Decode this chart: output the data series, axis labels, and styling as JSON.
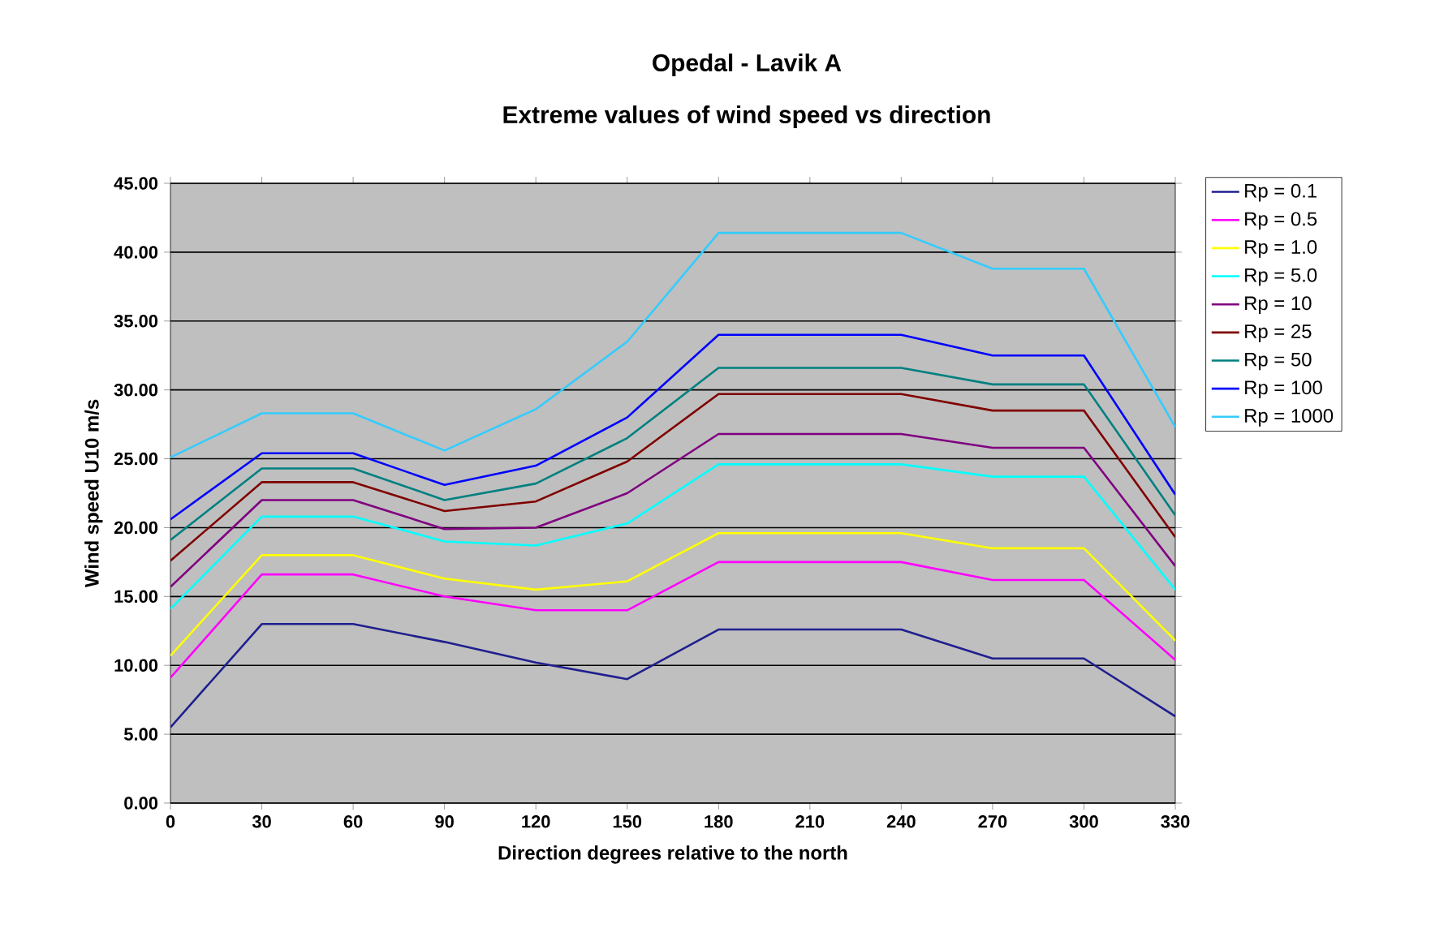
{
  "chart_data": {
    "type": "line",
    "title": "Opedal - Lavik A",
    "subtitle": "Extreme values of wind speed vs direction",
    "xlabel": "Direction degrees relative to the north",
    "ylabel": "Wind speed U10 m/s",
    "x": [
      0,
      30,
      60,
      90,
      120,
      150,
      180,
      210,
      240,
      270,
      300,
      330
    ],
    "xlim": [
      0,
      330
    ],
    "xticks": [
      0,
      30,
      60,
      90,
      120,
      150,
      180,
      210,
      240,
      270,
      300,
      330
    ],
    "ylim": [
      0,
      45
    ],
    "yticks": [
      {
        "value": 0,
        "label": "0.00"
      },
      {
        "value": 5,
        "label": "5.00"
      },
      {
        "value": 10,
        "label": "10.00"
      },
      {
        "value": 15,
        "label": "15.00"
      },
      {
        "value": 20,
        "label": "20.00"
      },
      {
        "value": 25,
        "label": "25.00"
      },
      {
        "value": 30,
        "label": "30.00"
      },
      {
        "value": 35,
        "label": "35.00"
      },
      {
        "value": 40,
        "label": "40.00"
      },
      {
        "value": 45,
        "label": "45.00"
      }
    ],
    "grid": "y",
    "legend": "right",
    "marker": "none",
    "line_style": "solid",
    "series": [
      {
        "name": "Rp = 0.1",
        "color": "#1f1f8f",
        "values": [
          5.5,
          13.0,
          13.0,
          11.7,
          10.2,
          9.0,
          12.6,
          12.6,
          12.6,
          10.5,
          10.5,
          6.3
        ]
      },
      {
        "name": "Rp = 0.5",
        "color": "#ff00ff",
        "values": [
          9.1,
          16.6,
          16.6,
          15.0,
          14.0,
          14.0,
          17.5,
          17.5,
          17.5,
          16.2,
          16.2,
          10.4
        ]
      },
      {
        "name": "Rp = 1.0",
        "color": "#ffff00",
        "values": [
          10.7,
          18.0,
          18.0,
          16.3,
          15.5,
          16.1,
          19.6,
          19.6,
          19.6,
          18.5,
          18.5,
          11.8
        ]
      },
      {
        "name": "Rp = 5.0",
        "color": "#00ffff",
        "values": [
          14.1,
          20.8,
          20.8,
          19.0,
          18.7,
          20.3,
          24.6,
          24.6,
          24.6,
          23.7,
          23.7,
          15.5
        ]
      },
      {
        "name": "Rp = 10",
        "color": "#800080",
        "values": [
          15.7,
          22.0,
          22.0,
          19.9,
          20.0,
          22.5,
          26.8,
          26.8,
          26.8,
          25.8,
          25.8,
          17.2
        ]
      },
      {
        "name": "Rp = 25",
        "color": "#800000",
        "values": [
          17.6,
          23.3,
          23.3,
          21.2,
          21.9,
          24.8,
          29.7,
          29.7,
          29.7,
          28.5,
          28.5,
          19.3
        ]
      },
      {
        "name": "Rp = 50",
        "color": "#008080",
        "values": [
          19.1,
          24.3,
          24.3,
          22.0,
          23.2,
          26.5,
          31.6,
          31.6,
          31.6,
          30.4,
          30.4,
          20.9
        ]
      },
      {
        "name": "Rp = 100",
        "color": "#0000ff",
        "values": [
          20.6,
          25.4,
          25.4,
          23.1,
          24.5,
          28.0,
          34.0,
          34.0,
          34.0,
          32.5,
          32.5,
          22.4
        ]
      },
      {
        "name": "Rp = 1000",
        "color": "#33ccff",
        "values": [
          25.1,
          28.3,
          28.3,
          25.6,
          28.6,
          33.5,
          41.4,
          41.4,
          41.4,
          38.8,
          38.8,
          27.3
        ]
      }
    ]
  }
}
